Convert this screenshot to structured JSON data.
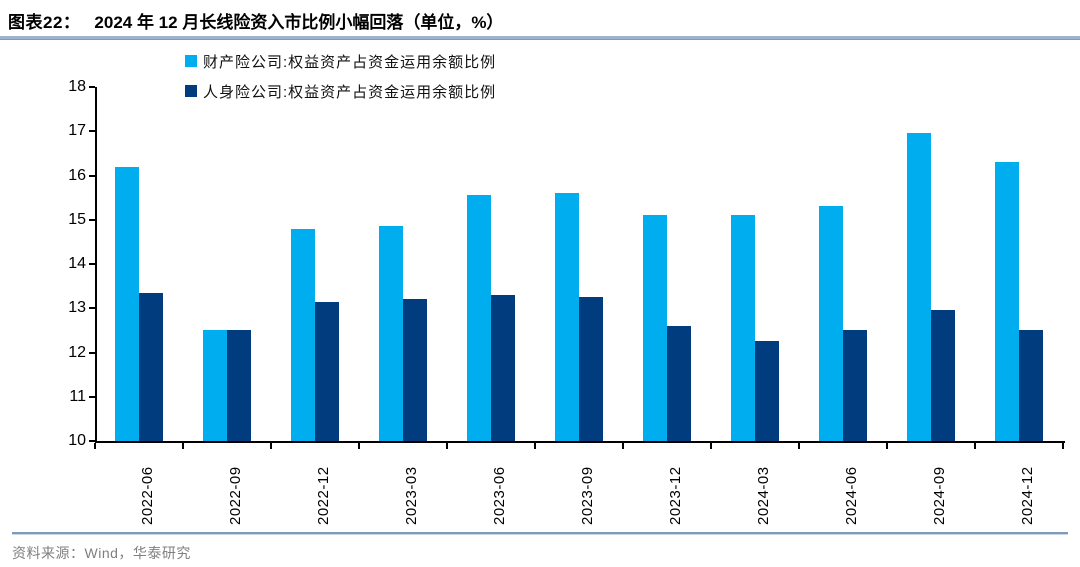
{
  "header": {
    "figure_label": "图表22：",
    "title": "2024 年 12 月长线险资入市比例小幅回落（单位，%）"
  },
  "footer": {
    "source": "资料来源：Wind，华泰研究"
  },
  "colors": {
    "series1": "#00AEEF",
    "series2": "#003C7E",
    "title_rule": "#9EB3CD",
    "footer_rule": "#7E9CB8",
    "axis": "#000000",
    "source_text": "#7F7F7F"
  },
  "chart_data": {
    "type": "bar",
    "title": "2024 年 12 月长线险资入市比例小幅回落（单位，%）",
    "categories": [
      "2022-06",
      "2022-09",
      "2022-12",
      "2023-03",
      "2023-06",
      "2023-09",
      "2023-12",
      "2024-03",
      "2024-06",
      "2024-09",
      "2024-12"
    ],
    "series": [
      {
        "name": "财产险公司:权益资产占资金运用余额比例",
        "color": "#00AEEF",
        "values": [
          16.2,
          12.5,
          14.8,
          14.85,
          15.55,
          15.6,
          15.1,
          15.1,
          15.3,
          16.95,
          16.3
        ]
      },
      {
        "name": "人身险公司:权益资产占资金运用余额比例",
        "color": "#003C7E",
        "values": [
          13.35,
          12.5,
          13.15,
          13.2,
          13.3,
          13.25,
          12.6,
          12.25,
          12.5,
          12.95,
          12.5
        ]
      }
    ],
    "ylim": [
      10,
      18
    ],
    "yticks": [
      10,
      11,
      12,
      13,
      14,
      15,
      16,
      17,
      18
    ],
    "grid": false,
    "legend_position": "top-left",
    "xlabel": "",
    "ylabel": "",
    "unit": "%"
  }
}
